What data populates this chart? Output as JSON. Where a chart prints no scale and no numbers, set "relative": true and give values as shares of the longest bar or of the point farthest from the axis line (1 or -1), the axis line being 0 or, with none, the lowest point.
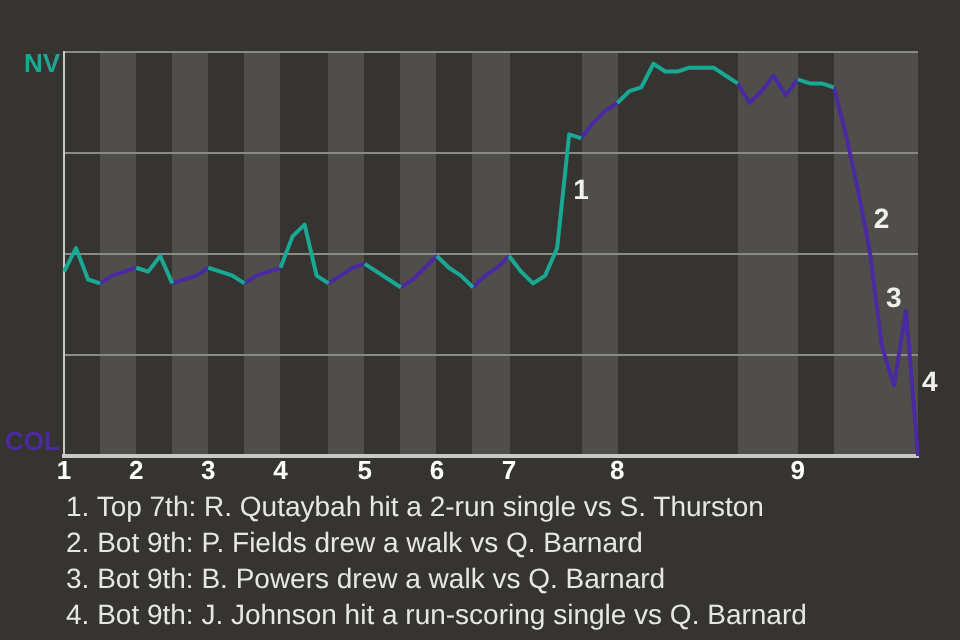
{
  "chart_data": {
    "type": "line",
    "relative": true,
    "categories": [
      "1",
      null,
      null,
      null,
      null,
      null,
      "2",
      null,
      null,
      null,
      null,
      null,
      "3",
      null,
      null,
      null,
      null,
      null,
      "4",
      null,
      null,
      null,
      null,
      null,
      null,
      "5",
      null,
      null,
      null,
      null,
      null,
      "6",
      null,
      null,
      null,
      null,
      null,
      "7",
      null,
      null,
      null,
      null,
      null,
      null,
      null,
      null,
      "8",
      null,
      null,
      null,
      null,
      null,
      null,
      null,
      null,
      null,
      null,
      null,
      null,
      null,
      null,
      "9",
      null,
      null,
      null,
      null,
      null,
      null,
      null,
      null,
      null,
      null
    ],
    "series": [
      {
        "name": "NV",
        "color": "#19a894",
        "values": [
          0.47,
          0.53,
          0.45,
          0.44,
          null,
          null,
          0.48,
          0.47,
          0.51,
          0.44,
          null,
          null,
          0.48,
          0.47,
          0.46,
          0.44,
          null,
          null,
          0.48,
          0.56,
          0.59,
          0.46,
          0.44,
          null,
          null,
          0.49,
          0.47,
          0.45,
          0.43,
          null,
          null,
          0.51,
          0.48,
          0.46,
          0.43,
          null,
          null,
          0.51,
          0.47,
          0.44,
          0.46,
          0.53,
          0.82,
          0.81,
          null,
          null,
          0.9,
          0.93,
          0.94,
          1,
          0.98,
          0.98,
          0.99,
          0.99,
          0.99,
          0.97,
          0.95,
          null,
          null,
          null,
          null,
          0.96,
          0.95,
          0.95,
          0.94,
          null,
          null,
          null,
          null,
          null,
          null,
          null
        ]
      },
      {
        "name": "COL",
        "color": "#4a2aa0",
        "values": [
          null,
          null,
          null,
          0.44,
          0.46,
          0.47,
          0.48,
          null,
          null,
          0.44,
          0.45,
          0.46,
          0.48,
          null,
          null,
          0.44,
          0.46,
          0.47,
          0.48,
          null,
          null,
          null,
          0.44,
          0.46,
          0.48,
          0.49,
          null,
          null,
          0.43,
          0.45,
          0.48,
          0.51,
          null,
          null,
          0.43,
          0.46,
          0.48,
          0.51,
          null,
          null,
          null,
          null,
          null,
          0.81,
          0.85,
          0.88,
          0.9,
          null,
          null,
          null,
          null,
          null,
          null,
          null,
          null,
          null,
          0.95,
          0.9,
          0.93,
          0.97,
          0.92,
          0.96,
          null,
          null,
          0.94,
          0.82,
          0.68,
          0.52,
          0.28,
          0.18,
          0.37,
          0
        ]
      }
    ],
    "grid": "y",
    "legend": false,
    "marker": "none",
    "line_style": "solid",
    "annotations": [
      "1",
      "2",
      "3",
      "4",
      "1. Top 7th: R. Qutaybah hit a 2-run single vs S. Thurston",
      "2. Bot 9th: P. Fields drew a walk vs Q. Barnard",
      "3. Bot 9th: B. Powers drew a walk vs Q. Barnard",
      "4. Bot 9th: J. Johnson hit a run-scoring single vs Q. Barnard"
    ]
  }
}
